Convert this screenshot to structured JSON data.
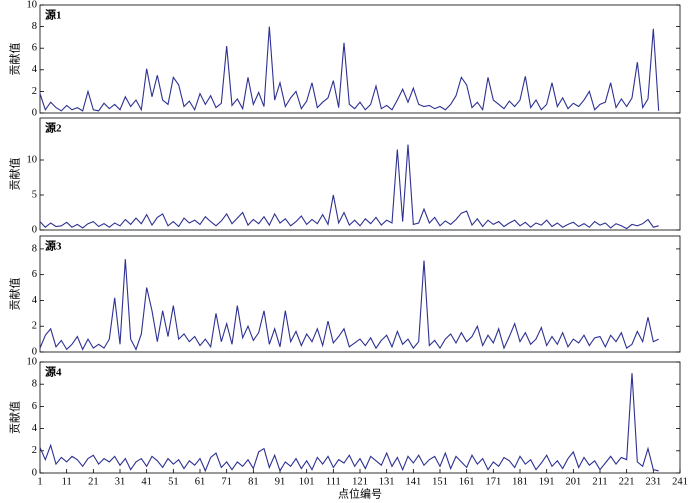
{
  "chart_data": [
    {
      "type": "line",
      "annotation": "源1",
      "ylabel": "贡献值",
      "color": "#2e3192",
      "xlim": [
        1,
        241
      ],
      "ylim": [
        0,
        10
      ],
      "yticks": [
        0,
        2,
        4,
        6,
        8,
        10
      ],
      "x": [
        1,
        3,
        5,
        7,
        9,
        11,
        13,
        15,
        17,
        19,
        21,
        23,
        25,
        27,
        29,
        31,
        33,
        35,
        37,
        39,
        41,
        43,
        45,
        47,
        49,
        51,
        53,
        55,
        57,
        59,
        61,
        63,
        65,
        67,
        69,
        71,
        73,
        75,
        77,
        79,
        81,
        83,
        85,
        87,
        89,
        91,
        93,
        95,
        97,
        99,
        101,
        103,
        105,
        107,
        109,
        111,
        113,
        115,
        117,
        119,
        121,
        123,
        125,
        127,
        129,
        131,
        133,
        135,
        137,
        139,
        141,
        143,
        145,
        147,
        149,
        151,
        153,
        155,
        157,
        159,
        161,
        163,
        165,
        167,
        169,
        171,
        173,
        175,
        177,
        179,
        181,
        183,
        185,
        187,
        189,
        191,
        193,
        195,
        197,
        199,
        201,
        203,
        205,
        207,
        209,
        211,
        213,
        215,
        217,
        219,
        221,
        223,
        225,
        227,
        229,
        231,
        233
      ],
      "values": [
        1.8,
        0.3,
        1.0,
        0.5,
        0.2,
        0.7,
        0.3,
        0.5,
        0.2,
        2.0,
        0.3,
        0.2,
        0.9,
        0.4,
        0.8,
        0.3,
        1.5,
        0.6,
        1.2,
        0.3,
        4.1,
        1.5,
        3.5,
        1.2,
        0.8,
        3.3,
        2.6,
        0.6,
        1.1,
        0.3,
        1.8,
        0.8,
        1.6,
        0.5,
        0.9,
        6.2,
        0.7,
        1.3,
        0.4,
        3.3,
        0.8,
        1.9,
        0.6,
        8.0,
        1.2,
        2.8,
        0.6,
        1.4,
        2.0,
        0.4,
        1.1,
        2.8,
        0.5,
        1.0,
        1.4,
        3.0,
        0.5,
        6.5,
        0.8,
        0.4,
        1.0,
        0.3,
        0.8,
        2.5,
        0.4,
        0.7,
        0.3,
        1.2,
        2.2,
        1.0,
        2.3,
        0.8,
        0.6,
        0.7,
        0.4,
        0.6,
        0.3,
        0.8,
        1.6,
        3.3,
        2.6,
        0.5,
        1.0,
        0.3,
        3.3,
        1.2,
        0.8,
        0.4,
        1.1,
        0.6,
        1.2,
        3.4,
        0.5,
        1.2,
        0.3,
        0.8,
        2.8,
        0.6,
        1.4,
        0.4,
        0.9,
        0.6,
        1.2,
        2.0,
        0.3,
        0.8,
        1.0,
        2.8,
        0.5,
        1.3,
        0.6,
        1.4,
        4.7,
        0.5,
        1.3,
        7.8,
        0.2
      ]
    },
    {
      "type": "line",
      "annotation": "源2",
      "ylabel": "贡献值",
      "color": "#2e3192",
      "xlim": [
        1,
        241
      ],
      "ylim": [
        0,
        16
      ],
      "yticks": [
        0,
        5,
        10
      ],
      "x": [
        1,
        3,
        5,
        7,
        9,
        11,
        13,
        15,
        17,
        19,
        21,
        23,
        25,
        27,
        29,
        31,
        33,
        35,
        37,
        39,
        41,
        43,
        45,
        47,
        49,
        51,
        53,
        55,
        57,
        59,
        61,
        63,
        65,
        67,
        69,
        71,
        73,
        75,
        77,
        79,
        81,
        83,
        85,
        87,
        89,
        91,
        93,
        95,
        97,
        99,
        101,
        103,
        105,
        107,
        109,
        111,
        113,
        115,
        117,
        119,
        121,
        123,
        125,
        127,
        129,
        131,
        133,
        135,
        137,
        139,
        141,
        143,
        145,
        147,
        149,
        151,
        153,
        155,
        157,
        159,
        161,
        163,
        165,
        167,
        169,
        171,
        173,
        175,
        177,
        179,
        181,
        183,
        185,
        187,
        189,
        191,
        193,
        195,
        197,
        199,
        201,
        203,
        205,
        207,
        209,
        211,
        213,
        215,
        217,
        219,
        221,
        223,
        225,
        227,
        229,
        231,
        233
      ],
      "values": [
        1.2,
        0.4,
        1.0,
        0.5,
        0.6,
        1.1,
        0.4,
        0.8,
        0.3,
        0.9,
        1.2,
        0.5,
        0.9,
        0.4,
        1.0,
        0.6,
        1.5,
        0.8,
        1.7,
        0.9,
        2.2,
        0.7,
        1.8,
        2.3,
        0.6,
        1.2,
        0.5,
        1.7,
        1.0,
        1.4,
        0.8,
        1.9,
        1.2,
        0.6,
        1.3,
        2.3,
        0.9,
        1.7,
        2.5,
        0.7,
        1.5,
        0.9,
        1.9,
        0.7,
        2.3,
        1.0,
        1.6,
        0.6,
        1.2,
        2.0,
        0.8,
        1.5,
        0.9,
        2.2,
        0.8,
        5.0,
        1.0,
        2.5,
        0.7,
        1.4,
        0.6,
        1.6,
        0.9,
        1.8,
        0.7,
        1.4,
        1.0,
        11.5,
        1.2,
        12.2,
        0.8,
        1.0,
        3.0,
        1.0,
        1.8,
        0.6,
        1.3,
        0.8,
        1.5,
        2.4,
        2.7,
        0.7,
        1.6,
        0.5,
        1.4,
        0.8,
        1.2,
        0.5,
        1.0,
        1.4,
        0.6,
        1.1,
        0.4,
        1.0,
        0.7,
        1.4,
        0.5,
        1.0,
        0.4,
        0.8,
        1.1,
        0.5,
        0.9,
        0.4,
        1.2,
        0.7,
        1.0,
        0.3,
        0.9,
        0.6,
        0.2,
        0.8,
        0.6,
        0.9,
        1.5,
        0.4,
        0.6
      ]
    },
    {
      "type": "line",
      "annotation": "源3",
      "ylabel": "贡献值",
      "color": "#2e3192",
      "xlim": [
        1,
        241
      ],
      "ylim": [
        0,
        9
      ],
      "yticks": [
        0,
        2,
        4,
        6,
        8
      ],
      "x": [
        1,
        3,
        5,
        7,
        9,
        11,
        13,
        15,
        17,
        19,
        21,
        23,
        25,
        27,
        29,
        31,
        33,
        35,
        37,
        39,
        41,
        43,
        45,
        47,
        49,
        51,
        53,
        55,
        57,
        59,
        61,
        63,
        65,
        67,
        69,
        71,
        73,
        75,
        77,
        79,
        81,
        83,
        85,
        87,
        89,
        91,
        93,
        95,
        97,
        99,
        101,
        103,
        105,
        107,
        109,
        111,
        113,
        115,
        117,
        119,
        121,
        123,
        125,
        127,
        129,
        131,
        133,
        135,
        137,
        139,
        141,
        143,
        145,
        147,
        149,
        151,
        153,
        155,
        157,
        159,
        161,
        163,
        165,
        167,
        169,
        171,
        173,
        175,
        177,
        179,
        181,
        183,
        185,
        187,
        189,
        191,
        193,
        195,
        197,
        199,
        201,
        203,
        205,
        207,
        209,
        211,
        213,
        215,
        217,
        219,
        221,
        223,
        225,
        227,
        229,
        231,
        233
      ],
      "values": [
        0.3,
        1.3,
        1.8,
        0.4,
        0.9,
        0.2,
        0.6,
        1.2,
        0.2,
        1.0,
        0.3,
        0.6,
        0.3,
        1.0,
        4.2,
        0.6,
        7.2,
        1.0,
        0.2,
        1.4,
        5.0,
        3.2,
        0.8,
        3.2,
        1.2,
        3.6,
        1.0,
        1.4,
        0.8,
        1.2,
        0.5,
        1.0,
        0.4,
        3.0,
        0.8,
        2.2,
        0.6,
        3.6,
        1.1,
        2.0,
        0.9,
        1.5,
        3.2,
        0.6,
        1.8,
        0.4,
        3.2,
        0.8,
        1.6,
        0.5,
        1.4,
        0.8,
        1.8,
        0.5,
        2.4,
        0.7,
        1.2,
        1.8,
        0.4,
        0.7,
        1.0,
        0.5,
        1.1,
        0.3,
        0.9,
        1.3,
        0.4,
        1.6,
        0.6,
        1.0,
        0.3,
        0.8,
        7.1,
        0.5,
        0.9,
        0.3,
        1.0,
        1.4,
        0.7,
        1.5,
        0.8,
        1.2,
        2.0,
        0.5,
        1.3,
        0.7,
        1.8,
        0.3,
        1.2,
        2.2,
        0.8,
        1.5,
        0.6,
        1.0,
        1.9,
        0.5,
        1.2,
        0.6,
        1.5,
        0.4,
        1.0,
        0.7,
        1.3,
        0.5,
        1.1,
        1.2,
        0.4,
        1.3,
        0.8,
        1.5,
        0.3,
        0.6,
        1.6,
        0.8,
        2.7,
        0.8,
        1.0
      ]
    },
    {
      "type": "line",
      "annotation": "源4",
      "ylabel": "贡献值",
      "xlabel": "点位编号",
      "color": "#2e3192",
      "xlim": [
        1,
        241
      ],
      "xticks": [
        1,
        11,
        21,
        31,
        41,
        51,
        61,
        71,
        81,
        91,
        101,
        111,
        121,
        131,
        141,
        151,
        161,
        171,
        181,
        191,
        201,
        211,
        221,
        231,
        241
      ],
      "ylim": [
        0,
        10
      ],
      "yticks": [
        0,
        2,
        4,
        6,
        8,
        10
      ],
      "x": [
        1,
        3,
        5,
        7,
        9,
        11,
        13,
        15,
        17,
        19,
        21,
        23,
        25,
        27,
        29,
        31,
        33,
        35,
        37,
        39,
        41,
        43,
        45,
        47,
        49,
        51,
        53,
        55,
        57,
        59,
        61,
        63,
        65,
        67,
        69,
        71,
        73,
        75,
        77,
        79,
        81,
        83,
        85,
        87,
        89,
        91,
        93,
        95,
        97,
        99,
        101,
        103,
        105,
        107,
        109,
        111,
        113,
        115,
        117,
        119,
        121,
        123,
        125,
        127,
        129,
        131,
        133,
        135,
        137,
        139,
        141,
        143,
        145,
        147,
        149,
        151,
        153,
        155,
        157,
        159,
        161,
        163,
        165,
        167,
        169,
        171,
        173,
        175,
        177,
        179,
        181,
        183,
        185,
        187,
        189,
        191,
        193,
        195,
        197,
        199,
        201,
        203,
        205,
        207,
        209,
        211,
        213,
        215,
        217,
        219,
        221,
        223,
        225,
        227,
        229,
        231,
        233
      ],
      "values": [
        2.3,
        1.2,
        2.5,
        0.8,
        1.4,
        1.0,
        1.5,
        1.2,
        0.6,
        1.3,
        1.6,
        0.8,
        1.3,
        1.0,
        1.5,
        0.7,
        1.3,
        0.3,
        1.0,
        1.3,
        0.6,
        1.5,
        1.1,
        0.5,
        1.3,
        0.8,
        1.2,
        0.4,
        1.1,
        0.7,
        1.3,
        0.2,
        1.4,
        1.8,
        0.5,
        1.0,
        0.3,
        1.0,
        0.6,
        1.2,
        0.4,
        1.9,
        2.2,
        0.5,
        1.6,
        0.2,
        1.0,
        0.6,
        1.3,
        0.4,
        1.1,
        0.3,
        1.4,
        0.8,
        1.5,
        0.5,
        1.2,
        0.9,
        1.6,
        0.6,
        1.3,
        0.4,
        1.5,
        1.1,
        0.7,
        1.8,
        0.6,
        1.4,
        0.3,
        1.5,
        0.9,
        1.6,
        0.7,
        1.2,
        1.5,
        0.6,
        1.8,
        0.4,
        1.5,
        1.0,
        0.5,
        1.6,
        0.8,
        1.3,
        0.3,
        1.0,
        0.6,
        1.4,
        1.1,
        0.5,
        1.5,
        0.8,
        1.2,
        0.3,
        0.9,
        1.6,
        0.6,
        1.1,
        0.4,
        1.3,
        1.9,
        0.5,
        1.4,
        0.7,
        1.1,
        0.3,
        0.9,
        1.5,
        0.8,
        1.4,
        1.2,
        9.0,
        1.0,
        0.6,
        2.2,
        0.3,
        0.2
      ]
    }
  ]
}
